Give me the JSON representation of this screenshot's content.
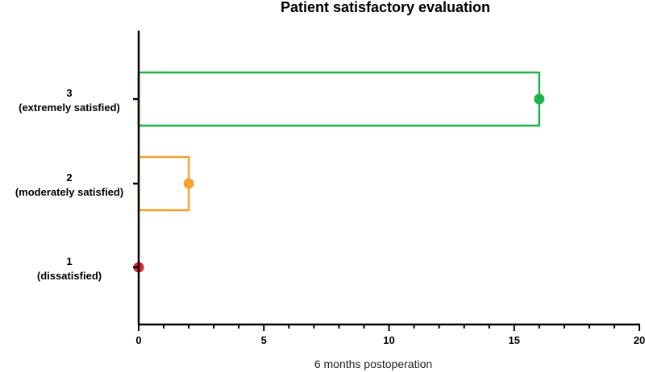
{
  "chart_data": {
    "type": "bar",
    "orientation": "horizontal",
    "title": "Patient satisfactory evaluation",
    "xlabel": "6 months postoperation",
    "ylabel": "",
    "xlim": [
      0,
      20
    ],
    "x_ticks": [
      0,
      5,
      10,
      15,
      20
    ],
    "x_minor_step": 1,
    "grid": false,
    "categories": [
      {
        "score": "3",
        "label": "(extremely satisfied)",
        "value": 16,
        "color": "#1db24a"
      },
      {
        "score": "2",
        "label": "(moderately satisfied)",
        "value": 2,
        "color": "#f5a32b"
      },
      {
        "score": "1",
        "label": "(dissatisfied)",
        "value": 0,
        "color": "#e2262b"
      }
    ]
  }
}
